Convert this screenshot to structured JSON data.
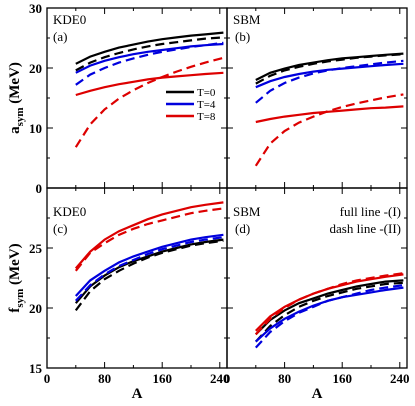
{
  "chart_data": [
    {
      "type": "line",
      "panel": "a",
      "label": "(a)",
      "model": "KDE0",
      "ylabel": "a_sym (MeV)",
      "xlim": [
        0,
        250
      ],
      "ylim": [
        0,
        30
      ],
      "yticks": [
        0,
        10,
        20,
        30
      ],
      "series": [
        {
          "name": "T=0",
          "color": "#000000",
          "style": "full",
          "x": [
            40,
            60,
            80,
            100,
            120,
            140,
            160,
            180,
            200,
            220,
            245
          ],
          "y": [
            20.7,
            21.9,
            22.7,
            23.4,
            23.9,
            24.4,
            24.8,
            25.1,
            25.4,
            25.6,
            25.9
          ]
        },
        {
          "name": "T=0",
          "color": "#000000",
          "style": "dash",
          "x": [
            40,
            60,
            80,
            100,
            120,
            140,
            160,
            180,
            200,
            220,
            245
          ],
          "y": [
            19.6,
            20.9,
            21.8,
            22.5,
            23.1,
            23.6,
            24.0,
            24.3,
            24.6,
            24.9,
            25.1
          ]
        },
        {
          "name": "T=4",
          "color": "#0000dd",
          "style": "full",
          "x": [
            40,
            60,
            80,
            100,
            120,
            140,
            160,
            180,
            200,
            220,
            245
          ],
          "y": [
            19.2,
            20.4,
            21.2,
            21.8,
            22.3,
            22.7,
            23.0,
            23.3,
            23.6,
            23.8,
            24.0
          ]
        },
        {
          "name": "T=4",
          "color": "#0000dd",
          "style": "dash",
          "x": [
            40,
            60,
            80,
            100,
            120,
            140,
            160,
            180,
            200,
            220,
            245
          ],
          "y": [
            17.2,
            18.9,
            20.0,
            20.9,
            21.6,
            22.2,
            22.7,
            23.1,
            23.5,
            23.8,
            24.2
          ]
        },
        {
          "name": "T=8",
          "color": "#dd0000",
          "style": "full",
          "x": [
            40,
            60,
            80,
            100,
            120,
            140,
            160,
            180,
            200,
            220,
            245
          ],
          "y": [
            15.5,
            16.2,
            16.8,
            17.3,
            17.7,
            18.1,
            18.4,
            18.6,
            18.8,
            19.0,
            19.2
          ]
        },
        {
          "name": "T=8",
          "color": "#dd0000",
          "style": "dash",
          "x": [
            40,
            60,
            80,
            100,
            120,
            140,
            160,
            180,
            200,
            220,
            245
          ],
          "y": [
            6.8,
            10.6,
            13.1,
            14.9,
            16.3,
            17.5,
            18.5,
            19.4,
            20.2,
            20.9,
            21.7
          ]
        }
      ]
    },
    {
      "type": "line",
      "panel": "b",
      "label": "(b)",
      "model": "SBM",
      "xlim": [
        0,
        250
      ],
      "ylim": [
        0,
        30
      ],
      "series": [
        {
          "name": "T=0",
          "color": "#000000",
          "style": "full",
          "x": [
            40,
            60,
            80,
            100,
            120,
            140,
            160,
            180,
            200,
            220,
            245
          ],
          "y": [
            18.0,
            19.2,
            19.9,
            20.5,
            20.9,
            21.3,
            21.6,
            21.8,
            22.0,
            22.2,
            22.4
          ]
        },
        {
          "name": "T=0",
          "color": "#000000",
          "style": "dash",
          "x": [
            40,
            60,
            80,
            100,
            120,
            140,
            160,
            180,
            200,
            220,
            245
          ],
          "y": [
            17.4,
            18.7,
            19.6,
            20.2,
            20.7,
            21.1,
            21.4,
            21.7,
            21.9,
            22.1,
            22.3
          ]
        },
        {
          "name": "T=4",
          "color": "#0000dd",
          "style": "full",
          "x": [
            40,
            60,
            80,
            100,
            120,
            140,
            160,
            180,
            200,
            220,
            245
          ],
          "y": [
            16.8,
            17.8,
            18.5,
            19.0,
            19.4,
            19.7,
            19.9,
            20.1,
            20.3,
            20.5,
            20.7
          ]
        },
        {
          "name": "T=4",
          "color": "#0000dd",
          "style": "dash",
          "x": [
            40,
            60,
            80,
            100,
            120,
            140,
            160,
            180,
            200,
            220,
            245
          ],
          "y": [
            14.2,
            16.2,
            17.5,
            18.4,
            19.1,
            19.6,
            20.0,
            20.3,
            20.6,
            20.9,
            21.2
          ]
        },
        {
          "name": "T=8",
          "color": "#dd0000",
          "style": "full",
          "x": [
            40,
            60,
            80,
            100,
            120,
            140,
            160,
            180,
            200,
            220,
            245
          ],
          "y": [
            11.0,
            11.5,
            11.9,
            12.2,
            12.5,
            12.7,
            12.9,
            13.1,
            13.3,
            13.4,
            13.6
          ]
        },
        {
          "name": "T=8",
          "color": "#dd0000",
          "style": "dash",
          "x": [
            40,
            60,
            80,
            100,
            120,
            140,
            160,
            180,
            200,
            220,
            245
          ],
          "y": [
            3.7,
            7.4,
            9.5,
            10.9,
            11.9,
            12.8,
            13.5,
            14.1,
            14.6,
            15.1,
            15.6
          ]
        }
      ],
      "legend": [
        "T=0",
        "T=4",
        "T=8"
      ],
      "legend_placement": "lower-left"
    },
    {
      "type": "line",
      "panel": "c",
      "label": "(c)",
      "model": "KDE0",
      "xlabel": "A",
      "ylabel": "f_sym (MeV)",
      "xlim": [
        0,
        250
      ],
      "ylim": [
        15,
        30
      ],
      "xticks": [
        0,
        80,
        160,
        240
      ],
      "yticks": [
        15,
        20,
        25
      ],
      "series": [
        {
          "name": "T=0",
          "color": "#000000",
          "style": "full",
          "x": [
            40,
            60,
            80,
            100,
            120,
            140,
            160,
            180,
            200,
            220,
            245
          ],
          "y": [
            20.4,
            21.8,
            22.7,
            23.4,
            23.9,
            24.3,
            24.7,
            25.0,
            25.3,
            25.5,
            25.7
          ]
        },
        {
          "name": "T=0",
          "color": "#000000",
          "style": "dash",
          "x": [
            40,
            60,
            80,
            100,
            120,
            140,
            160,
            180,
            200,
            220,
            245
          ],
          "y": [
            19.8,
            21.4,
            22.4,
            23.1,
            23.7,
            24.2,
            24.6,
            24.9,
            25.2,
            25.4,
            25.6
          ]
        },
        {
          "name": "T=4",
          "color": "#0000dd",
          "style": "full",
          "x": [
            40,
            60,
            80,
            100,
            120,
            140,
            160,
            180,
            200,
            220,
            245
          ],
          "y": [
            21.0,
            22.3,
            23.1,
            23.8,
            24.3,
            24.7,
            25.1,
            25.4,
            25.7,
            25.9,
            26.1
          ]
        },
        {
          "name": "T=4",
          "color": "#0000dd",
          "style": "dash",
          "x": [
            40,
            60,
            80,
            100,
            120,
            140,
            160,
            180,
            200,
            220,
            245
          ],
          "y": [
            20.6,
            21.9,
            22.8,
            23.5,
            24.0,
            24.5,
            24.9,
            25.2,
            25.5,
            25.7,
            25.9
          ]
        },
        {
          "name": "T=8",
          "color": "#dd0000",
          "style": "full",
          "x": [
            40,
            60,
            80,
            100,
            120,
            140,
            160,
            180,
            200,
            220,
            245
          ],
          "y": [
            23.3,
            24.7,
            25.7,
            26.4,
            26.9,
            27.4,
            27.8,
            28.1,
            28.4,
            28.6,
            28.8
          ]
        },
        {
          "name": "T=8",
          "color": "#dd0000",
          "style": "dash",
          "x": [
            40,
            60,
            80,
            100,
            120,
            140,
            160,
            180,
            200,
            220,
            245
          ],
          "y": [
            23.1,
            24.6,
            25.4,
            26.1,
            26.6,
            27.0,
            27.3,
            27.6,
            27.9,
            28.1,
            28.3
          ]
        }
      ]
    },
    {
      "type": "line",
      "panel": "d",
      "label": "(d)",
      "model": "SBM",
      "xlabel": "A",
      "xlim": [
        0,
        250
      ],
      "ylim": [
        15,
        30
      ],
      "xticks": [
        0,
        80,
        160,
        240
      ],
      "series": [
        {
          "name": "T=0",
          "color": "#000000",
          "style": "full",
          "x": [
            40,
            60,
            80,
            100,
            120,
            140,
            160,
            180,
            200,
            220,
            245
          ],
          "y": [
            17.8,
            19.0,
            19.8,
            20.4,
            20.8,
            21.2,
            21.5,
            21.8,
            22.0,
            22.2,
            22.3
          ]
        },
        {
          "name": "T=0",
          "color": "#000000",
          "style": "dash",
          "x": [
            40,
            60,
            80,
            100,
            120,
            140,
            160,
            180,
            200,
            220,
            245
          ],
          "y": [
            17.2,
            18.5,
            19.4,
            20.1,
            20.6,
            21.0,
            21.3,
            21.6,
            21.8,
            22.0,
            22.1
          ]
        },
        {
          "name": "T=4",
          "color": "#0000dd",
          "style": "full",
          "x": [
            40,
            60,
            80,
            100,
            120,
            140,
            160,
            180,
            200,
            220,
            245
          ],
          "y": [
            17.2,
            18.3,
            19.1,
            19.7,
            20.2,
            20.6,
            20.9,
            21.1,
            21.3,
            21.5,
            21.7
          ]
        },
        {
          "name": "T=4",
          "color": "#0000dd",
          "style": "dash",
          "x": [
            40,
            60,
            80,
            100,
            120,
            140,
            160,
            180,
            200,
            220,
            245
          ],
          "y": [
            16.7,
            18.0,
            18.9,
            19.6,
            20.1,
            20.6,
            20.9,
            21.2,
            21.5,
            21.7,
            21.9
          ]
        },
        {
          "name": "T=8",
          "color": "#dd0000",
          "style": "full",
          "x": [
            40,
            60,
            80,
            100,
            120,
            140,
            160,
            180,
            200,
            220,
            245
          ],
          "y": [
            18.1,
            19.3,
            20.1,
            20.7,
            21.2,
            21.6,
            21.9,
            22.2,
            22.4,
            22.6,
            22.8
          ]
        },
        {
          "name": "T=8",
          "color": "#dd0000",
          "style": "dash",
          "x": [
            40,
            60,
            80,
            100,
            120,
            140,
            160,
            180,
            200,
            220,
            245
          ],
          "y": [
            17.8,
            19.1,
            20.0,
            20.7,
            21.2,
            21.6,
            22.0,
            22.3,
            22.5,
            22.7,
            22.9
          ]
        }
      ],
      "notes": [
        "full line -(I)",
        "dash line -(II)"
      ]
    }
  ]
}
